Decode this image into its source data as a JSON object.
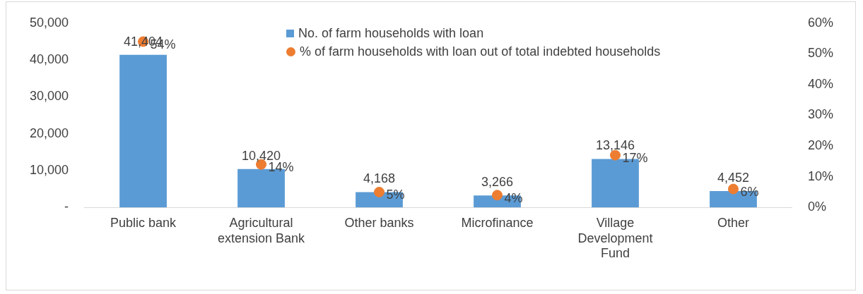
{
  "chart_data": {
    "type": "bar",
    "categories": [
      "Public bank",
      "Agricultural extension Bank",
      "Other banks",
      "Microfinance",
      "Village Development Fund",
      "Other"
    ],
    "series": [
      {
        "name": "No. of farm households with loan",
        "color": "#5b9bd5",
        "values": [
          41404,
          10420,
          4168,
          3266,
          13146,
          4452
        ],
        "value_labels": [
          "41,404",
          "10,420",
          "4,168",
          "3,266",
          "13,146",
          "4,452"
        ]
      },
      {
        "name": "% of farm households with loan out of total indebted households",
        "type": "scatter",
        "axis": "y2",
        "color": "#ed7d31",
        "values": [
          54,
          14,
          5,
          4,
          17,
          6
        ],
        "value_labels": [
          "54%",
          "14%",
          "5%",
          "4%",
          "17%",
          "6%"
        ]
      }
    ],
    "ylim": [
      0,
      50000
    ],
    "yticks": [
      {
        "value": 0,
        "label": "-"
      },
      {
        "value": 10000,
        "label": "10,000"
      },
      {
        "value": 20000,
        "label": "20,000"
      },
      {
        "value": 30000,
        "label": "30,000"
      },
      {
        "value": 40000,
        "label": "40,000"
      },
      {
        "value": 50000,
        "label": "50,000"
      }
    ],
    "y2lim": [
      0,
      60
    ],
    "y2ticks": [
      {
        "value": 0,
        "label": "0%"
      },
      {
        "value": 10,
        "label": "10%"
      },
      {
        "value": 20,
        "label": "20%"
      },
      {
        "value": 30,
        "label": "30%"
      },
      {
        "value": 40,
        "label": "40%"
      },
      {
        "value": 50,
        "label": "50%"
      },
      {
        "value": 60,
        "label": "60%"
      }
    ],
    "grid": false,
    "legend": "top",
    "marker": "circle"
  }
}
